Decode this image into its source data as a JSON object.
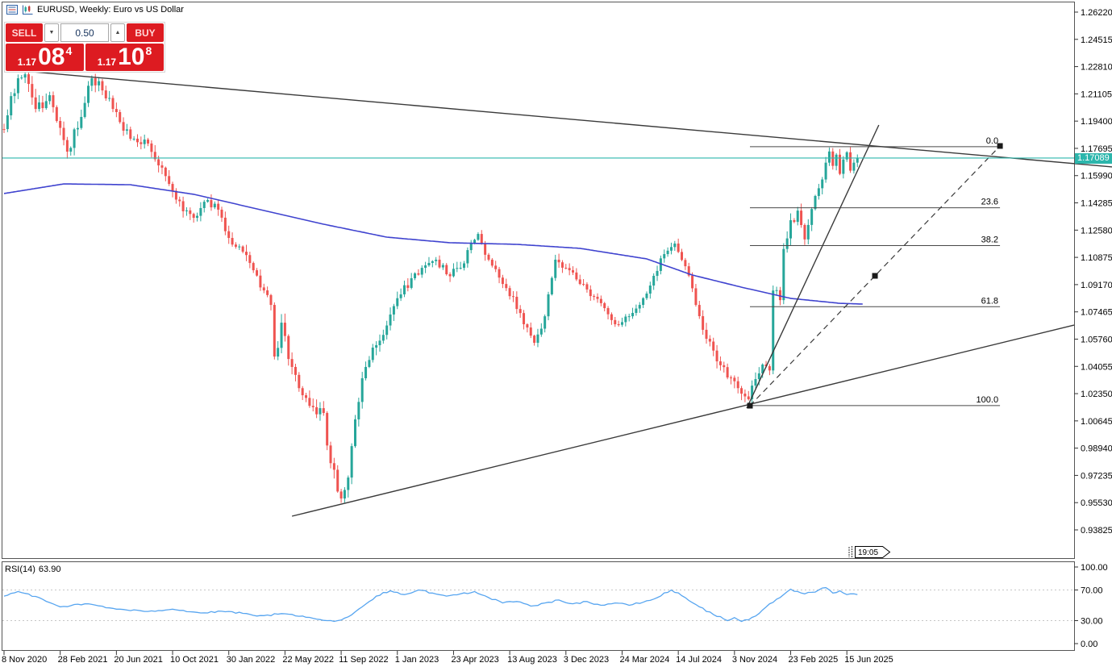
{
  "header": {
    "symbol_title": "EURUSD, Weekly: Euro vs US Dollar"
  },
  "trade_panel": {
    "sell_label": "SELL",
    "buy_label": "BUY",
    "volume": "0.50",
    "sell_price": {
      "prefix": "1.17",
      "big": "08",
      "sup": "4"
    },
    "buy_price": {
      "prefix": "1.17",
      "big": "10",
      "sup": "8"
    }
  },
  "chart_data": {
    "type": "candlestick",
    "symbol": "EURUSD",
    "timeframe": "Weekly",
    "description": "Euro vs US Dollar",
    "current_price": 1.17089,
    "current_price_label": "1.17089",
    "countdown": "19:05",
    "colors": {
      "bull": "#26a69a",
      "bear": "#ef5350",
      "ma": "#3f43cf",
      "rsi": "#57a5f0",
      "price_line": "#2cb6ac",
      "trend": "#3a3a3a",
      "fib": "#484848",
      "panel_red": "#dd1b21",
      "rsi_level_dash": "#c6c6c6"
    },
    "price_axis": {
      "ticks": [
        1.2622,
        1.24515,
        1.2281,
        1.21105,
        1.194,
        1.17695,
        1.1599,
        1.14285,
        1.1258,
        1.10875,
        1.0917,
        1.07465,
        1.0576,
        1.04055,
        1.0235,
        1.00645,
        0.9894,
        0.97235,
        0.9553,
        0.93825
      ],
      "max": 1.2622,
      "min": 0.93825
    },
    "time_axis": {
      "ticks": [
        [
          0,
          "8 Nov 2020"
        ],
        [
          16,
          "28 Feb 2021"
        ],
        [
          32,
          "20 Jun 2021"
        ],
        [
          48,
          "10 Oct 2021"
        ],
        [
          64,
          "30 Jan 2022"
        ],
        [
          80,
          "22 May 2022"
        ],
        [
          96,
          "11 Sep 2022"
        ],
        [
          112,
          "1 Jan 2023"
        ],
        [
          128,
          "23 Apr 2023"
        ],
        [
          144,
          "13 Aug 2023"
        ],
        [
          160,
          "3 Dec 2023"
        ],
        [
          176,
          "24 Mar 2024"
        ],
        [
          192,
          "14 Jul 2024"
        ],
        [
          208,
          "3 Nov 2024"
        ],
        [
          224,
          "23 Feb 2025"
        ],
        [
          240,
          "15 Jun 2025"
        ]
      ]
    },
    "weeks_total": 244,
    "close_path": [
      [
        0,
        1.189,
        0.009
      ],
      [
        4,
        1.2208,
        0.009
      ],
      [
        6,
        1.2233,
        0.008
      ],
      [
        9,
        1.2016,
        0.009
      ],
      [
        13,
        1.2102,
        0.008
      ],
      [
        15,
        1.1941,
        0.008
      ],
      [
        18,
        1.1749,
        0.008
      ],
      [
        22,
        1.1966,
        0.008
      ],
      [
        25,
        1.2208,
        0.007
      ],
      [
        28,
        1.2132,
        0.007
      ],
      [
        31,
        1.2016,
        0.007
      ],
      [
        34,
        1.188,
        0.007
      ],
      [
        37,
        1.183,
        0.006
      ],
      [
        41,
        1.18,
        0.006
      ],
      [
        44,
        1.1663,
        0.007
      ],
      [
        47,
        1.1547,
        0.007
      ],
      [
        51,
        1.1376,
        0.007
      ],
      [
        54,
        1.1335,
        0.006
      ],
      [
        58,
        1.1446,
        0.006
      ],
      [
        61,
        1.1386,
        0.006
      ],
      [
        64,
        1.1209,
        0.007
      ],
      [
        68,
        1.1123,
        0.007
      ],
      [
        71,
        1.1007,
        0.007
      ],
      [
        74,
        1.0881,
        0.008
      ],
      [
        76,
        1.079,
        0.008
      ],
      [
        77,
        1.0467,
        0.011
      ],
      [
        79,
        1.0679,
        0.01
      ],
      [
        82,
        1.0402,
        0.009
      ],
      [
        85,
        1.0225,
        0.008
      ],
      [
        88,
        1.015,
        0.008
      ],
      [
        91,
        1.0114,
        0.008
      ],
      [
        93,
        0.98,
        0.009
      ],
      [
        96,
        0.9579,
        0.009
      ],
      [
        98,
        0.971,
        0.009
      ],
      [
        100,
        1.0074,
        0.009
      ],
      [
        103,
        1.0402,
        0.008
      ],
      [
        106,
        1.0538,
        0.008
      ],
      [
        110,
        1.073,
        0.008
      ],
      [
        113,
        1.0856,
        0.007
      ],
      [
        116,
        1.0957,
        0.007
      ],
      [
        119,
        1.1022,
        0.006
      ],
      [
        123,
        1.1073,
        0.006
      ],
      [
        126,
        1.0982,
        0.006
      ],
      [
        130,
        1.1022,
        0.006
      ],
      [
        132,
        1.1133,
        0.006
      ],
      [
        135,
        1.1234,
        0.006
      ],
      [
        138,
        1.1073,
        0.006
      ],
      [
        142,
        1.0921,
        0.006
      ],
      [
        145,
        1.0841,
        0.006
      ],
      [
        148,
        1.0669,
        0.006
      ],
      [
        151,
        1.0553,
        0.006
      ],
      [
        154,
        1.0719,
        0.006
      ],
      [
        157,
        1.1073,
        0.006
      ],
      [
        161,
        1.1007,
        0.005
      ],
      [
        164,
        1.0921,
        0.005
      ],
      [
        168,
        1.0841,
        0.005
      ],
      [
        171,
        1.077,
        0.005
      ],
      [
        174,
        1.0669,
        0.005
      ],
      [
        178,
        1.0719,
        0.005
      ],
      [
        181,
        1.079,
        0.005
      ],
      [
        185,
        1.0972,
        0.005
      ],
      [
        188,
        1.1108,
        0.005
      ],
      [
        191,
        1.1174,
        0.005
      ],
      [
        194,
        1.1032,
        0.006
      ],
      [
        197,
        1.079,
        0.007
      ],
      [
        200,
        1.0578,
        0.007
      ],
      [
        203,
        1.0437,
        0.007
      ],
      [
        206,
        1.0336,
        0.007
      ],
      [
        210,
        1.0235,
        0.007
      ],
      [
        212,
        1.02,
        0.007
      ],
      [
        214,
        1.0326,
        0.007
      ],
      [
        216,
        1.0417,
        0.006
      ],
      [
        218,
        1.038,
        0.006
      ],
      [
        219,
        1.088,
        0.008
      ],
      [
        221,
        1.082,
        0.006
      ],
      [
        222,
        1.114,
        0.008
      ],
      [
        224,
        1.132,
        0.008
      ],
      [
        226,
        1.138,
        0.007
      ],
      [
        228,
        1.12,
        0.007
      ],
      [
        230,
        1.139,
        0.007
      ],
      [
        232,
        1.152,
        0.006
      ],
      [
        234,
        1.168,
        0.006
      ],
      [
        235,
        1.175,
        0.006
      ],
      [
        236,
        1.166,
        0.006
      ],
      [
        237,
        1.173,
        0.005
      ],
      [
        238,
        1.161,
        0.006
      ],
      [
        239,
        1.17,
        0.005
      ],
      [
        240,
        1.1745,
        0.005
      ],
      [
        241,
        1.163,
        0.005
      ],
      [
        242,
        1.168,
        0.004
      ],
      [
        243,
        1.17089,
        0.004
      ]
    ],
    "ma_path": [
      [
        0,
        1.1487
      ],
      [
        17,
        1.1547
      ],
      [
        36,
        1.1542
      ],
      [
        54,
        1.1482
      ],
      [
        72,
        1.1391
      ],
      [
        91,
        1.1295
      ],
      [
        109,
        1.1214
      ],
      [
        127,
        1.1179
      ],
      [
        146,
        1.1169
      ],
      [
        164,
        1.1144
      ],
      [
        183,
        1.1078
      ],
      [
        196,
        1.0977
      ],
      [
        210,
        1.0901
      ],
      [
        224,
        1.0831
      ],
      [
        238,
        1.08
      ],
      [
        245,
        1.0795
      ]
    ],
    "trendlines": [
      {
        "name": "descending-resistance",
        "w1": 5.3,
        "p1": 1.22537,
        "w2": 315.5,
        "p2": 1.16533,
        "dashed": false
      },
      {
        "name": "ascending-support",
        "w1": 82.0,
        "p1": 0.94683,
        "w2": 304.7,
        "p2": 1.06641,
        "dashed": false
      },
      {
        "name": "steep-rally-trendline",
        "w1": 211.5,
        "p1": 1.01442,
        "w2": 249.1,
        "p2": 1.19156,
        "dashed": false
      },
      {
        "name": "fibo-projection",
        "w1": 212.4,
        "p1": 1.01595,
        "w2": 283.6,
        "p2": 1.17845,
        "dashed": true
      }
    ],
    "fibonacci": {
      "w_start": 212.4,
      "w_end": 283.6,
      "high": 1.178,
      "low": 1.016,
      "levels": [
        [
          0.0,
          "0.0"
        ],
        [
          23.6,
          "23.6"
        ],
        [
          38.2,
          "38.2"
        ],
        [
          61.8,
          "61.8"
        ],
        [
          100.0,
          "100.0"
        ]
      ]
    },
    "markers": [
      [
        212.4,
        1.01595
      ],
      [
        248.0,
        1.0972
      ],
      [
        283.6,
        1.17845
      ]
    ],
    "rsi": {
      "name": "RSI(14)",
      "value": "63.90",
      "period": 14,
      "levels": [
        70,
        30
      ],
      "path": [
        [
          0,
          62
        ],
        [
          4,
          68
        ],
        [
          10,
          60
        ],
        [
          16,
          48
        ],
        [
          24,
          52
        ],
        [
          32,
          45
        ],
        [
          40,
          42
        ],
        [
          48,
          45
        ],
        [
          56,
          40
        ],
        [
          64,
          42
        ],
        [
          72,
          36
        ],
        [
          80,
          39
        ],
        [
          88,
          33
        ],
        [
          94,
          29
        ],
        [
          98,
          35
        ],
        [
          102,
          48
        ],
        [
          106,
          62
        ],
        [
          110,
          69
        ],
        [
          114,
          64
        ],
        [
          118,
          70
        ],
        [
          122,
          66
        ],
        [
          126,
          62
        ],
        [
          130,
          65
        ],
        [
          134,
          68
        ],
        [
          138,
          60
        ],
        [
          142,
          53
        ],
        [
          146,
          55
        ],
        [
          150,
          49
        ],
        [
          154,
          53
        ],
        [
          158,
          57
        ],
        [
          162,
          52
        ],
        [
          166,
          55
        ],
        [
          170,
          50
        ],
        [
          174,
          53
        ],
        [
          178,
          50
        ],
        [
          182,
          54
        ],
        [
          186,
          60
        ],
        [
          190,
          70
        ],
        [
          194,
          60
        ],
        [
          198,
          48
        ],
        [
          202,
          38
        ],
        [
          206,
          30
        ],
        [
          208,
          34
        ],
        [
          210,
          29
        ],
        [
          212,
          31
        ],
        [
          214,
          36
        ],
        [
          216,
          44
        ],
        [
          218,
          52
        ],
        [
          220,
          58
        ],
        [
          222,
          64
        ],
        [
          224,
          71
        ],
        [
          226,
          68
        ],
        [
          228,
          65
        ],
        [
          230,
          67
        ],
        [
          232,
          70
        ],
        [
          234,
          73
        ],
        [
          236,
          66
        ],
        [
          238,
          69
        ],
        [
          240,
          64
        ],
        [
          242,
          65
        ],
        [
          243,
          63.9
        ]
      ],
      "axis_ticks": [
        100,
        70,
        30,
        0
      ]
    }
  }
}
